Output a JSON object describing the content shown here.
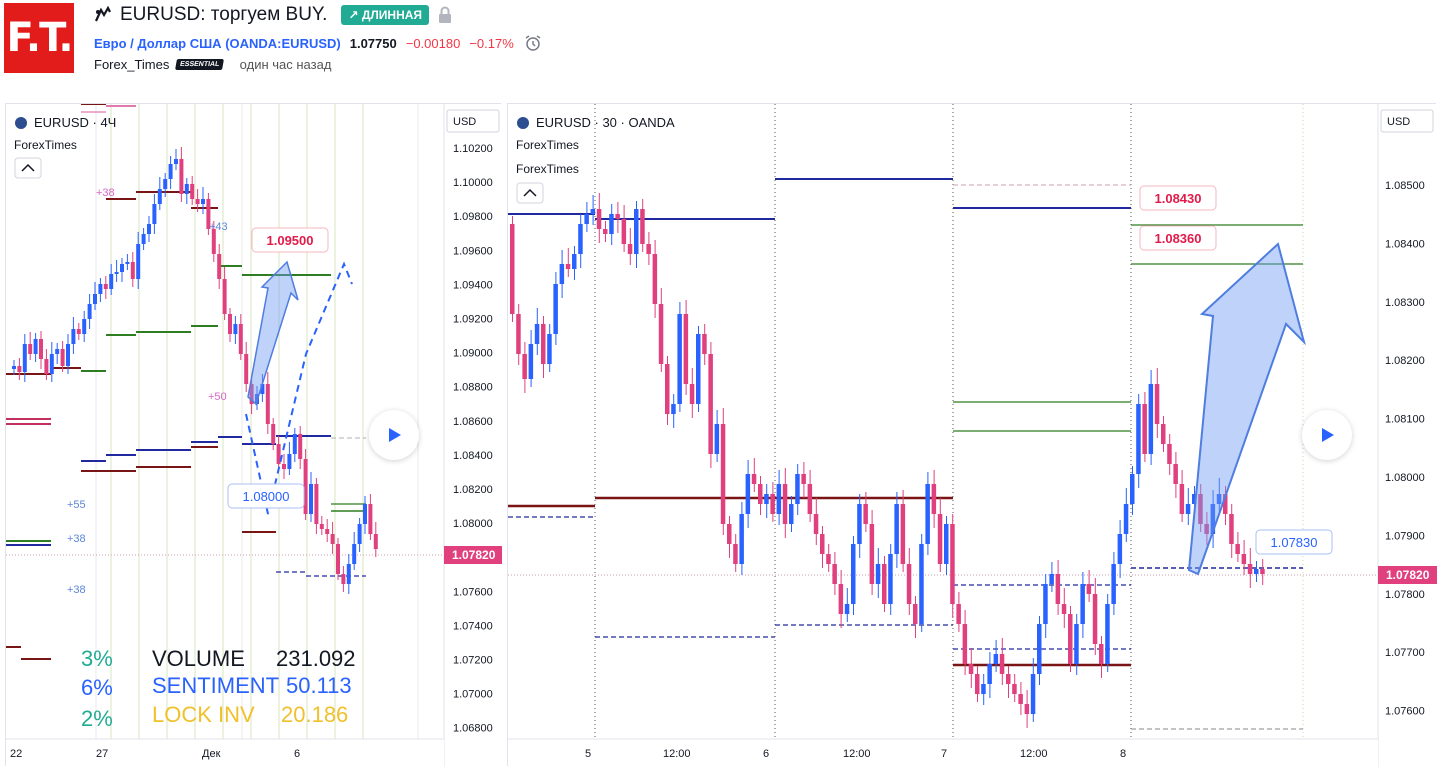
{
  "header": {
    "logo_text": "F.T.",
    "title": "EURUSD: торгуем BUY.",
    "badge": "↗ ДЛИННАЯ",
    "symbol_name": "Евро / Доллар США",
    "symbol_code": "(OANDA:EURUSD)",
    "price": "1.07750",
    "change": "−0.00180",
    "change_pct": "−0.17%",
    "author": "Forex_Times",
    "author_badge": "ESSENTIAL",
    "time_ago": "один час назад"
  },
  "colors": {
    "brand": "#e21b1b",
    "up": "#2962ff",
    "down": "#e0407e",
    "badge": "#22ab94",
    "neg": "#f23645"
  },
  "chart1": {
    "legend_symbol": "EURUSD · 4Ч",
    "legend_author": "ForexTimes",
    "currency": "USD",
    "y_ticks": [
      "1.10200",
      "1.10000",
      "1.09800",
      "1.09600",
      "1.09400",
      "1.09200",
      "1.09000",
      "1.08800",
      "1.08600",
      "1.08400",
      "1.08200",
      "1.08000",
      "1.07800",
      "1.07600",
      "1.07400",
      "1.07200",
      "1.07000",
      "1.06800"
    ],
    "x_ticks": [
      "22",
      "27",
      "Дек",
      "6"
    ],
    "last_price": "1.07820",
    "label_target": "1.09500",
    "label_entry": "1.08000",
    "annotations": [
      "+38",
      "+43",
      "+50",
      "+55",
      "+38",
      "+38"
    ],
    "stats": [
      {
        "pct": "3%",
        "label": "VOLUME",
        "value": "231.092"
      },
      {
        "pct": "6%",
        "label": "SENTIMENT",
        "value": "50.113"
      },
      {
        "pct": "2%",
        "label": "LOCK INV",
        "value": "20.186"
      }
    ]
  },
  "chart2": {
    "legend_symbol": "EURUSD · 30 · OANDA",
    "legend_author1": "ForexTimes",
    "legend_author2": "ForexTimes",
    "currency": "USD",
    "y_ticks": [
      "1.08500",
      "1.08400",
      "1.08300",
      "1.08200",
      "1.08100",
      "1.08000",
      "1.07900",
      "1.07800",
      "1.07700",
      "1.07600"
    ],
    "x_ticks": [
      "5",
      "12:00",
      "6",
      "12:00",
      "7",
      "12:00",
      "8"
    ],
    "last_price": "1.07820",
    "label_t1": "1.08430",
    "label_t2": "1.08360",
    "label_entry": "1.07830"
  }
}
